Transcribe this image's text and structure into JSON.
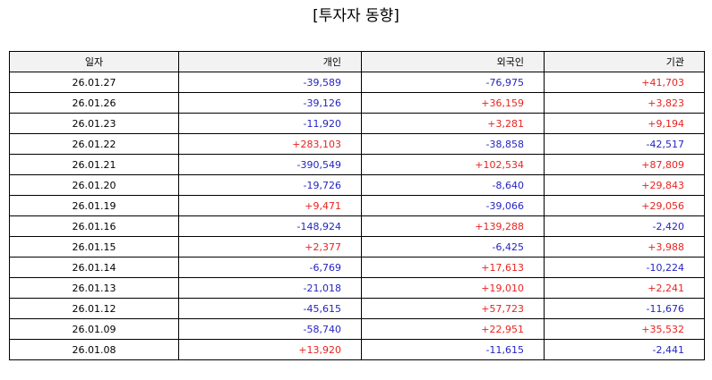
{
  "title": "[투자자 동향]",
  "colors": {
    "positive": "#e8231f",
    "negative": "#2424c4",
    "header_bg": "#f2f2f2"
  },
  "table": {
    "headers": [
      "일자",
      "개인",
      "외국인",
      "기관"
    ],
    "rows": [
      [
        "26.01.27",
        "-39,589",
        "-76,975",
        "+41,703"
      ],
      [
        "26.01.26",
        "-39,126",
        "+36,159",
        "+3,823"
      ],
      [
        "26.01.23",
        "-11,920",
        "+3,281",
        "+9,194"
      ],
      [
        "26.01.22",
        "+283,103",
        "-38,858",
        "-42,517"
      ],
      [
        "26.01.21",
        "-390,549",
        "+102,534",
        "+87,809"
      ],
      [
        "26.01.20",
        "-19,726",
        "-8,640",
        "+29,843"
      ],
      [
        "26.01.19",
        "+9,471",
        "-39,066",
        "+29,056"
      ],
      [
        "26.01.16",
        "-148,924",
        "+139,288",
        "-2,420"
      ],
      [
        "26.01.15",
        "+2,377",
        "-6,425",
        "+3,988"
      ],
      [
        "26.01.14",
        "-6,769",
        "+17,613",
        "-10,224"
      ],
      [
        "26.01.13",
        "-21,018",
        "+19,010",
        "+2,241"
      ],
      [
        "26.01.12",
        "-45,615",
        "+57,723",
        "-11,676"
      ],
      [
        "26.01.09",
        "-58,740",
        "+22,951",
        "+35,532"
      ],
      [
        "26.01.08",
        "+13,920",
        "-11,615",
        "-2,441"
      ]
    ]
  }
}
